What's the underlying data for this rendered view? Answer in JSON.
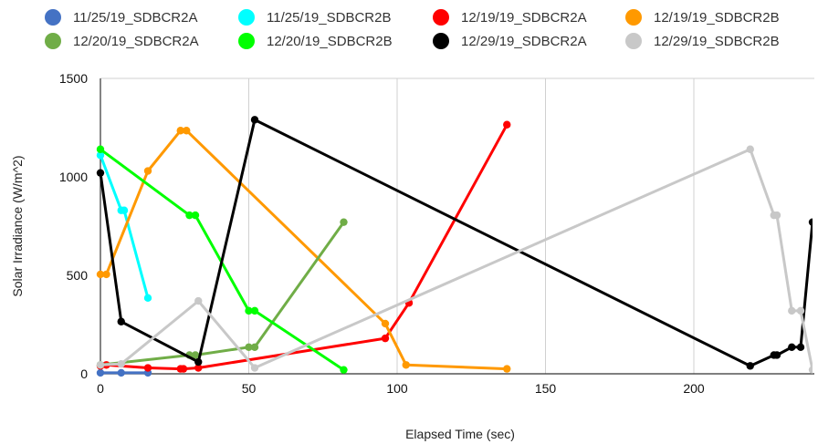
{
  "chart_data": {
    "type": "scatter",
    "xlabel": "Elapsed Time (sec)",
    "ylabel": "Solar Irradiance (W/m^2)",
    "xlim": [
      0,
      240
    ],
    "ylim": [
      0,
      1500
    ],
    "xticks": [
      0,
      50,
      100,
      150,
      200
    ],
    "yticks": [
      0,
      500,
      1000,
      1500
    ],
    "grid": "vertical",
    "legend_position": "top",
    "series": [
      {
        "name": "11/25/19_SDBCR2A",
        "color": "#4472C4",
        "points": [
          [
            0,
            5
          ],
          [
            7,
            5
          ],
          [
            16,
            5
          ]
        ]
      },
      {
        "name": "11/25/19_SDBCR2B",
        "color": "#00FFFF",
        "points": [
          [
            0,
            1110
          ],
          [
            7,
            830
          ],
          [
            8,
            830
          ],
          [
            16,
            385
          ]
        ]
      },
      {
        "name": "12/19/19_SDBCR2A",
        "color": "#FF0000",
        "points": [
          [
            0,
            40
          ],
          [
            2,
            45
          ],
          [
            16,
            30
          ],
          [
            27,
            25
          ],
          [
            28,
            25
          ],
          [
            33,
            30
          ],
          [
            96,
            180
          ],
          [
            104,
            360
          ],
          [
            137,
            1265
          ]
        ]
      },
      {
        "name": "12/19/19_SDBCR2B",
        "color": "#FF9900",
        "points": [
          [
            0,
            505
          ],
          [
            2,
            505
          ],
          [
            16,
            1030
          ],
          [
            27,
            1235
          ],
          [
            29,
            1235
          ],
          [
            96,
            255
          ],
          [
            103,
            45
          ],
          [
            137,
            25
          ]
        ]
      },
      {
        "name": "12/20/19_SDBCR2A",
        "color": "#70AD47",
        "points": [
          [
            0,
            45
          ],
          [
            30,
            95
          ],
          [
            32,
            95
          ],
          [
            50,
            135
          ],
          [
            52,
            135
          ],
          [
            82,
            770
          ]
        ]
      },
      {
        "name": "12/20/19_SDBCR2B",
        "color": "#00FF00",
        "points": [
          [
            0,
            1140
          ],
          [
            30,
            805
          ],
          [
            32,
            805
          ],
          [
            50,
            320
          ],
          [
            52,
            320
          ],
          [
            82,
            20
          ]
        ]
      },
      {
        "name": "12/29/19_SDBCR2A",
        "color": "#000000",
        "points": [
          [
            0,
            1020
          ],
          [
            7,
            265
          ],
          [
            33,
            60
          ],
          [
            52,
            1290
          ],
          [
            219,
            40
          ],
          [
            227,
            95
          ],
          [
            228,
            95
          ],
          [
            233,
            135
          ],
          [
            236,
            135
          ],
          [
            240,
            770
          ]
        ]
      },
      {
        "name": "12/29/19_SDBCR2B",
        "color": "#C8C8C8",
        "points": [
          [
            0,
            45
          ],
          [
            7,
            50
          ],
          [
            33,
            370
          ],
          [
            52,
            30
          ],
          [
            219,
            1140
          ],
          [
            227,
            805
          ],
          [
            228,
            805
          ],
          [
            233,
            320
          ],
          [
            236,
            320
          ],
          [
            240,
            20
          ]
        ]
      }
    ]
  }
}
